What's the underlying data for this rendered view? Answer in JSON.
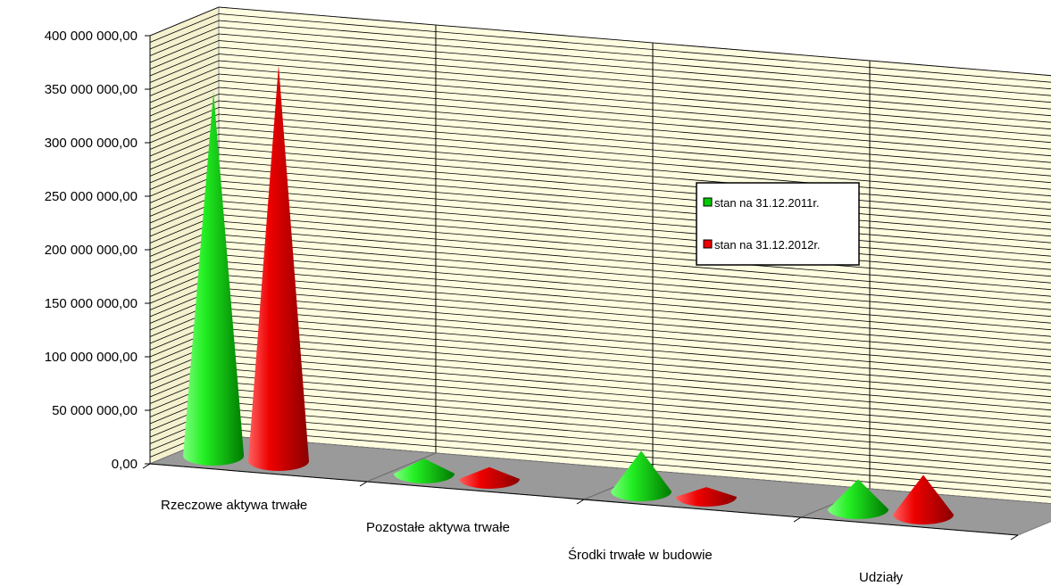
{
  "chart_data": {
    "type": "bar",
    "style": "3d-cone",
    "categories": [
      "Rzeczowe aktywa trwałe",
      "Pozostałe aktywa trwałe",
      "Środki trwałe w budowie",
      "Udziały"
    ],
    "series": [
      {
        "name": "stan na 31.12.2011r.",
        "color": "#00cc00",
        "values": [
          340000000,
          14000000,
          38000000,
          28000000
        ]
      },
      {
        "name": "stan na 31.12.2012r.",
        "color": "#ee0000",
        "values": [
          370000000,
          11000000,
          9000000,
          37000000
        ]
      }
    ],
    "ylim": [
      0,
      400000000
    ],
    "y_ticks": [
      "0,00",
      "50 000 000,00",
      "100 000 000,00",
      "150 000 000,00",
      "200 000 000,00",
      "250 000 000,00",
      "300 000 000,00",
      "350 000 000,00",
      "400 000 000,00"
    ],
    "grid": true,
    "legend_position": "right",
    "colors": {
      "wall": "#fffde0",
      "floor": "#9a9a9a",
      "grid": "#000000"
    }
  }
}
